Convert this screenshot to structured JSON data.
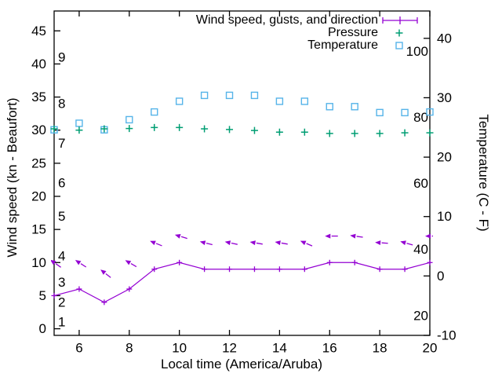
{
  "chart_data": {
    "type": "line",
    "title": "",
    "xlabel": "Local time (America/Aruba)",
    "ylabel_left": "Wind speed (kn - Beaufort)",
    "ylabel_right": "Temperature (C - F)",
    "xlim": [
      5,
      20
    ],
    "ylim_left": [
      -1,
      48
    ],
    "ylim_right": [
      -10,
      44.6
    ],
    "xticks": [
      6,
      8,
      10,
      12,
      14,
      16,
      18,
      20
    ],
    "yticks_left": [
      0,
      5,
      10,
      15,
      20,
      25,
      30,
      35,
      40,
      45
    ],
    "yticks_right": [
      -10,
      0,
      10,
      20,
      30,
      40
    ],
    "beaufort_labels": [
      {
        "label": "1",
        "kn": 1
      },
      {
        "label": "2",
        "kn": 4
      },
      {
        "label": "3",
        "kn": 7
      },
      {
        "label": "4",
        "kn": 11
      },
      {
        "label": "5",
        "kn": 17
      },
      {
        "label": "6",
        "kn": 22
      },
      {
        "label": "7",
        "kn": 28
      },
      {
        "label": "8",
        "kn": 34
      },
      {
        "label": "9",
        "kn": 41
      }
    ],
    "fahrenheit_labels": [
      {
        "label": "20",
        "f": 20
      },
      {
        "label": "40",
        "f": 40
      },
      {
        "label": "60",
        "f": 60
      },
      {
        "label": "80",
        "f": 80
      },
      {
        "label": "100",
        "f": 100
      }
    ],
    "hours": [
      5,
      6,
      7,
      8,
      9,
      10,
      11,
      12,
      13,
      14,
      15,
      16,
      17,
      18,
      19,
      20
    ],
    "grid": false,
    "legend_position": "top-right-inside",
    "series": [
      {
        "name": "Wind speed, gusts, and direction",
        "color": "#9400d3",
        "axis": "left",
        "type": "line+markers+vectors",
        "values": [
          5,
          6,
          4,
          6,
          9,
          10,
          9,
          9,
          9,
          9,
          9,
          10,
          10,
          9,
          9,
          10
        ],
        "gusts": [
          10,
          10,
          8.5,
          10,
          13,
          14,
          13,
          13,
          13,
          13,
          13,
          14,
          14,
          13,
          13,
          14
        ],
        "gust_arrow_angles_deg": [
          35,
          33,
          38,
          30,
          22,
          17,
          14,
          12,
          10,
          10,
          23,
          0,
          8,
          4,
          16,
          0
        ]
      },
      {
        "name": "Pressure",
        "color": "#009e73",
        "axis": "left",
        "type": "points",
        "marker": "plus",
        "values": [
          30.2,
          30.0,
          30.2,
          30.25,
          30.4,
          30.4,
          30.2,
          30.1,
          29.95,
          29.7,
          29.7,
          29.5,
          29.5,
          29.5,
          29.6,
          29.6
        ]
      },
      {
        "name": "Temperature",
        "color": "#56b4e9",
        "axis": "right",
        "type": "points",
        "marker": "square",
        "values": [
          24.6,
          25.7,
          24.6,
          26.3,
          27.6,
          29.4,
          30.4,
          30.4,
          30.4,
          29.4,
          29.4,
          28.5,
          28.5,
          27.5,
          27.5,
          27.6
        ]
      }
    ]
  }
}
